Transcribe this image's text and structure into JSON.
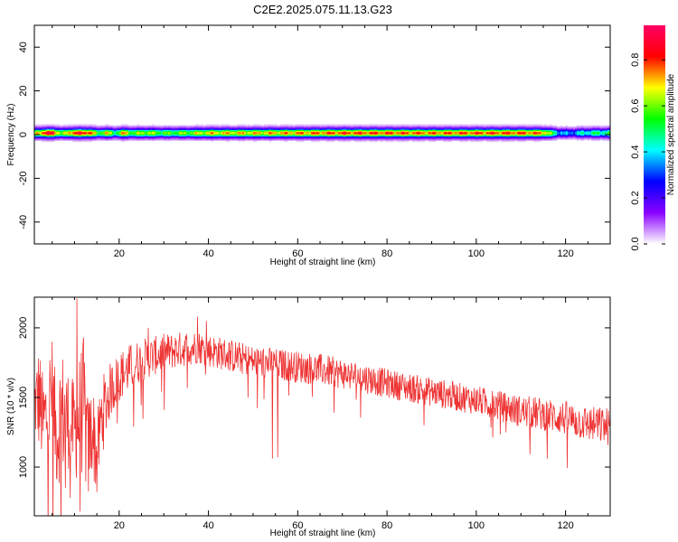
{
  "title": "C2E2.2025.075.11.13.G23",
  "chart_data": [
    {
      "type": "heatmap",
      "xlabel": "Height of straight line (km)",
      "ylabel": "Frequency (Hz)",
      "xlim": [
        1,
        130
      ],
      "ylim": [
        -50,
        50
      ],
      "x_ticks": [
        20,
        40,
        60,
        80,
        100,
        120
      ],
      "x_tick_labels": [
        "20",
        "40",
        "60",
        "80",
        "100",
        "120"
      ],
      "y_ticks": [
        -40,
        -20,
        0,
        20,
        40
      ],
      "y_tick_labels": [
        "-40",
        "-20",
        "0",
        "20",
        "40"
      ],
      "colorbar": {
        "label": "Normalized spectral amplitude",
        "range": [
          0,
          0.95
        ],
        "ticks": [
          0,
          0.2,
          0.4,
          0.6,
          0.8
        ],
        "tick_labels": [
          "0.0",
          "0.2",
          "0.4",
          "0.6",
          "0.8"
        ],
        "colormap": [
          "#ffffff",
          "#8a00ff",
          "#0000ff",
          "#00ffff",
          "#00ff00",
          "#ffff00",
          "#ff0000",
          "#ff0066"
        ]
      },
      "band": {
        "center_hz": 0.8,
        "core_halfwidth_hz": 1.2,
        "halo_halfwidth_hz": 5,
        "x": [
          1,
          3,
          5,
          7,
          9,
          11,
          13,
          15,
          17,
          19,
          21,
          23,
          25,
          30,
          35,
          40,
          50,
          60,
          70,
          80,
          90,
          100,
          110,
          115,
          118,
          120,
          125,
          130
        ],
        "peak_amplitude": [
          0.7,
          0.9,
          0.95,
          0.6,
          0.85,
          0.9,
          0.9,
          0.6,
          0.75,
          0.55,
          0.8,
          0.6,
          0.7,
          0.6,
          0.65,
          0.75,
          0.75,
          0.8,
          0.85,
          0.85,
          0.82,
          0.85,
          0.85,
          0.8,
          0.45,
          0.35,
          0.5,
          0.55
        ]
      },
      "grid": false
    },
    {
      "type": "line",
      "xlabel": "Height of straight line (km)",
      "ylabel": "SNR (10 * v/v)",
      "xlim": [
        1,
        130
      ],
      "ylim": [
        650,
        2220
      ],
      "x_ticks": [
        20,
        40,
        60,
        80,
        100,
        120
      ],
      "x_tick_labels": [
        "20",
        "40",
        "60",
        "80",
        "100",
        "120"
      ],
      "y_ticks": [
        1000,
        1500,
        2000
      ],
      "y_tick_labels": [
        "1000",
        "1500",
        "2000"
      ],
      "series": [
        {
          "color": "#ee3333",
          "envelope_x": [
            1,
            2,
            3,
            4,
            5,
            6,
            7,
            8,
            9,
            10,
            11,
            12,
            13,
            14,
            15,
            16,
            18,
            20,
            22,
            24,
            26,
            28,
            30,
            33,
            36,
            38,
            40,
            45,
            50,
            55,
            60,
            65,
            70,
            75,
            80,
            85,
            90,
            95,
            100,
            105,
            110,
            115,
            120,
            125,
            130
          ],
          "envelope_center": [
            1450,
            1500,
            1300,
            1400,
            1550,
            1200,
            1400,
            1350,
            1350,
            1250,
            1350,
            1450,
            1100,
            1300,
            1050,
            1350,
            1550,
            1650,
            1700,
            1750,
            1780,
            1800,
            1820,
            1840,
            1860,
            1860,
            1840,
            1800,
            1760,
            1740,
            1720,
            1700,
            1670,
            1640,
            1600,
            1570,
            1540,
            1510,
            1480,
            1440,
            1400,
            1380,
            1350,
            1310,
            1290
          ],
          "envelope_halfwidth": [
            250,
            400,
            350,
            450,
            400,
            350,
            500,
            400,
            350,
            350,
            450,
            500,
            400,
            350,
            300,
            300,
            200,
            180,
            180,
            160,
            150,
            140,
            140,
            130,
            130,
            120,
            120,
            120,
            115,
            115,
            115,
            115,
            110,
            110,
            105,
            105,
            105,
            105,
            105,
            110,
            115,
            120,
            125,
            130,
            140
          ],
          "spikes": [
            {
              "x": 10.5,
              "y": 2210
            },
            {
              "x": 11.2,
              "y": 680
            },
            {
              "x": 9.0,
              "y": 780
            },
            {
              "x": 5.0,
              "y": 1900
            },
            {
              "x": 8.0,
              "y": 850
            },
            {
              "x": 26.5,
              "y": 2000
            },
            {
              "x": 37.5,
              "y": 2080
            },
            {
              "x": 54.3,
              "y": 1060
            },
            {
              "x": 55.5,
              "y": 1070
            },
            {
              "x": 39.5,
              "y": 2050
            }
          ]
        }
      ],
      "grid": false
    }
  ]
}
